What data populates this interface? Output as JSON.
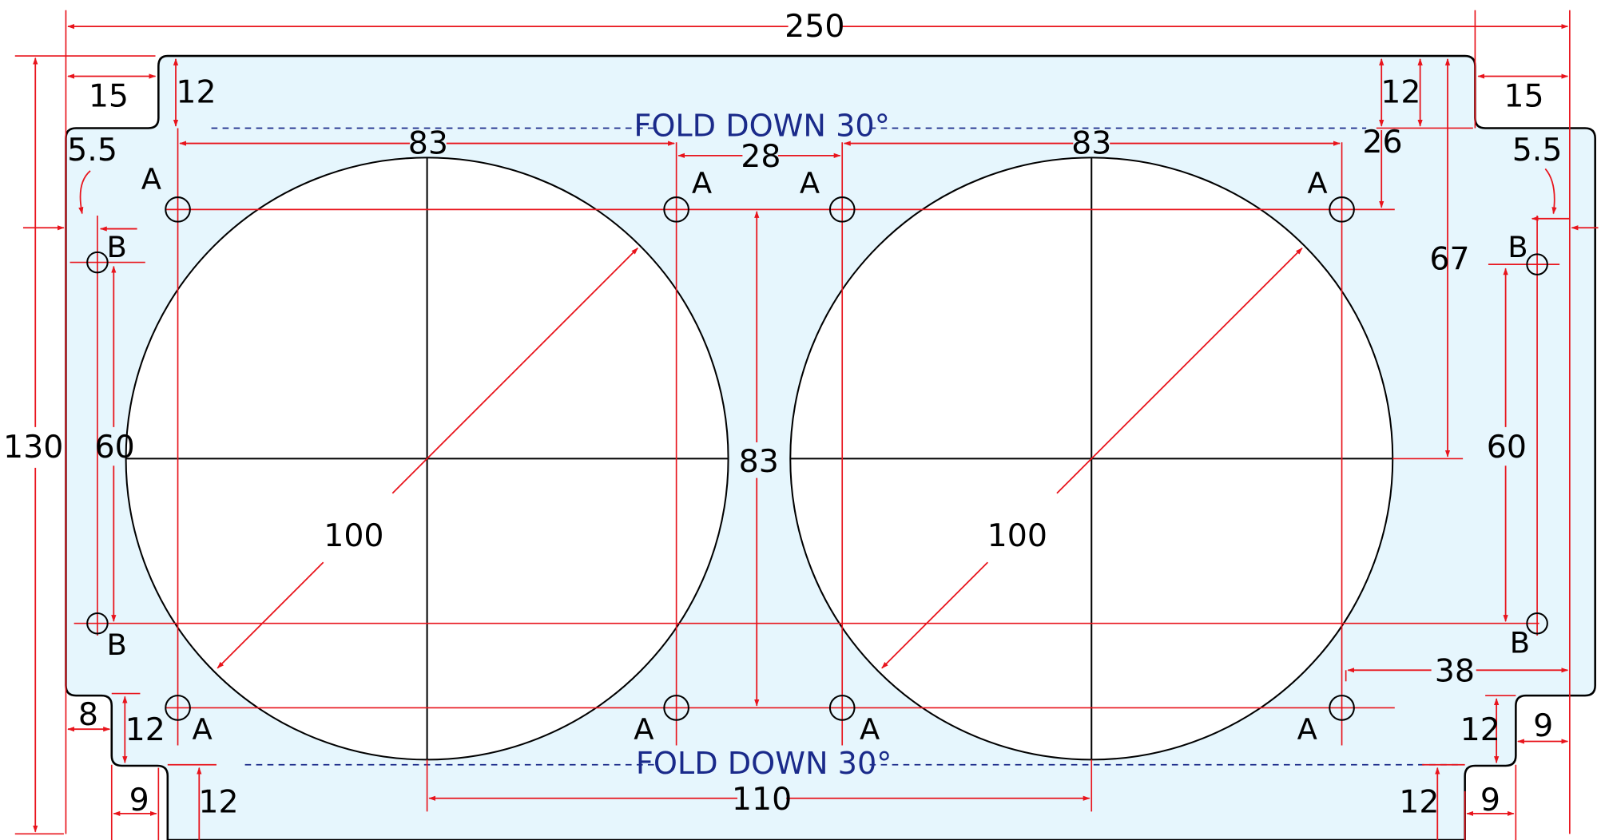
{
  "colors": {
    "plate_fill": "#e6f6fd",
    "outline": "#000000",
    "dimension": "#e8141c",
    "fold_line": "#1a2a8a",
    "text": "#000000"
  },
  "drawing": {
    "fold_top": "FOLD DOWN 30°",
    "fold_bottom": "FOLD DOWN 30°",
    "hole_a": "A",
    "hole_b": "B"
  },
  "dimensions": {
    "overall_width": "250",
    "overall_height": "130",
    "top_tab_offset_left": "15",
    "top_tab_offset_right": "15",
    "top_tab_height_left": "12",
    "top_tab_height_right": "12",
    "b_hole_offset_left": "5.5",
    "b_hole_offset_right": "5.5",
    "fan_a_hole_spacing_left": "83",
    "fan_a_hole_spacing_right": "83",
    "fan_gap": "28",
    "a_hole_top_offset": "26",
    "right_center_height": "67",
    "b_hole_spacing_left": "60",
    "b_hole_spacing_right": "60",
    "a_hole_vertical_spacing": "83",
    "fan_diameter_left": "100",
    "fan_diameter_right": "100",
    "right_edge_to_a": "38",
    "bottom_left_step_width": "8",
    "bottom_left_step_height": "12",
    "bottom_left_tab_width": "9",
    "bottom_left_tab_height": "12",
    "bottom_right_step_height": "12",
    "bottom_right_step_width": "9",
    "bottom_right_tab_height": "12",
    "bottom_right_tab_width": "9",
    "fan_center_spacing": "110"
  }
}
